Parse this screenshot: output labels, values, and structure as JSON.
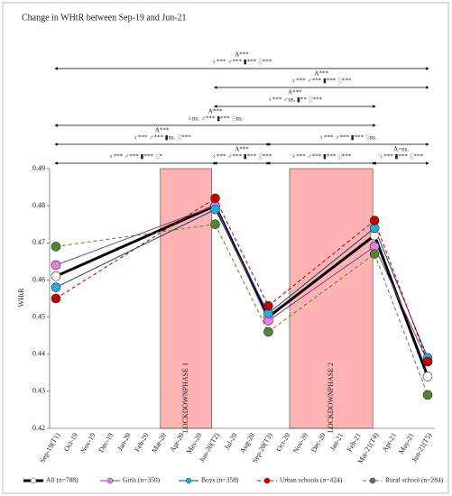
{
  "chart_data": {
    "type": "line",
    "title": "Change in WHtR between Sep-19 and Jun-21",
    "y_label": "WHtR",
    "categories": [
      "Sep-19(T1)",
      "Oct-19",
      "Nov-19",
      "Dec-19",
      "Jan-20",
      "Feb-20",
      "Mar-20",
      "Apr-20",
      "May-20",
      "Jun-20(T2)",
      "Jul-20",
      "Aug-20",
      "Sep-20(T3)",
      "Oct-20",
      "Nov-20",
      "Dec-20",
      "Jan-21",
      "Feb-21",
      "Mar-21(T4)",
      "Apr-21",
      "May-21",
      "Jun-21(T5)"
    ],
    "ylim": [
      0.42,
      0.49
    ],
    "yticks": [
      0.42,
      0.43,
      0.44,
      0.45,
      0.46,
      0.47,
      0.48,
      0.49
    ],
    "grid": false,
    "series": [
      {
        "name": "All (n=708)",
        "color": "#000000",
        "marker": "#ffffff",
        "dash": false,
        "values": [
          0.461,
          null,
          null,
          null,
          null,
          null,
          null,
          null,
          null,
          0.48,
          null,
          null,
          0.45,
          null,
          null,
          null,
          null,
          null,
          0.472,
          null,
          null,
          0.434
        ]
      },
      {
        "name": "Girls (n=350)",
        "color": "#7b3f8f",
        "marker": "#e77ee6",
        "dash": false,
        "values": [
          0.464,
          null,
          null,
          null,
          null,
          null,
          null,
          null,
          null,
          0.48,
          null,
          null,
          0.449,
          null,
          null,
          null,
          null,
          null,
          0.469,
          null,
          null,
          0.438
        ]
      },
      {
        "name": "Boys (n=358)",
        "color": "#1f3f6e",
        "marker": "#29a9e0",
        "dash": false,
        "values": [
          0.458,
          null,
          null,
          null,
          null,
          null,
          null,
          null,
          null,
          0.479,
          null,
          null,
          0.451,
          null,
          null,
          null,
          null,
          null,
          0.474,
          null,
          null,
          0.439
        ]
      },
      {
        "name": "Urban schools (n=424)",
        "color": "#c00000",
        "marker": "#c00000",
        "dash": true,
        "values": [
          0.455,
          null,
          null,
          null,
          null,
          null,
          null,
          null,
          null,
          0.482,
          null,
          null,
          0.453,
          null,
          null,
          null,
          null,
          null,
          0.476,
          null,
          null,
          0.438
        ]
      },
      {
        "name": "Rural school (n=284)",
        "color": "#548235",
        "marker": "#548235",
        "dash": true,
        "values": [
          0.469,
          null,
          null,
          null,
          null,
          null,
          null,
          null,
          null,
          0.475,
          null,
          null,
          0.446,
          null,
          null,
          null,
          null,
          null,
          0.467,
          null,
          null,
          0.429
        ]
      }
    ],
    "regions": [
      {
        "label": "LOCKDOWNPHASE 1",
        "x_start": 5.9,
        "x_end": 8.8,
        "color": "#ffb3b3"
      },
      {
        "label": "LOCKDOWNPHASE 2",
        "x_start": 13.2,
        "x_end": 17.9,
        "color": "#ffb3b3"
      }
    ],
    "comparisons": [
      {
        "from": 0,
        "to": 21,
        "overall": "A***",
        "groups": "♀*** ♂*** ▮*** ░***"
      },
      {
        "from": 9,
        "to": 21,
        "overall": "A***",
        "groups": "♀*** ♂*** ▮*** ░***"
      },
      {
        "from": 9,
        "to": 18,
        "overall": "A***",
        "groups": "♀*** ♂ns. ▮** ░***"
      },
      {
        "from": 0,
        "to": 18,
        "overall": "A***",
        "groups": "♀ns. ♂*** ▮*** ░ns."
      },
      {
        "from": 0,
        "to": 12,
        "overall": "A***",
        "groups": "♀*** ♂*** ▮ns. ░***"
      },
      {
        "from": 12,
        "to": 21,
        "groups": "♀*** ♂*** ▮*** ░ns."
      },
      {
        "from": 0,
        "to": 9,
        "groups": "♀*** ♂*** ▮*** ░*"
      },
      {
        "from": 9,
        "to": 12,
        "overall": "A***",
        "groups": "♀*** ♂*** ▮*** ░***"
      },
      {
        "from": 12,
        "to": 18,
        "groups": "♀*** ♂*** ▮*** ░***"
      },
      {
        "from": 18,
        "to": 21,
        "overall": "A=ns.",
        "groups": "♀*** ▮*** ░***"
      }
    ]
  }
}
